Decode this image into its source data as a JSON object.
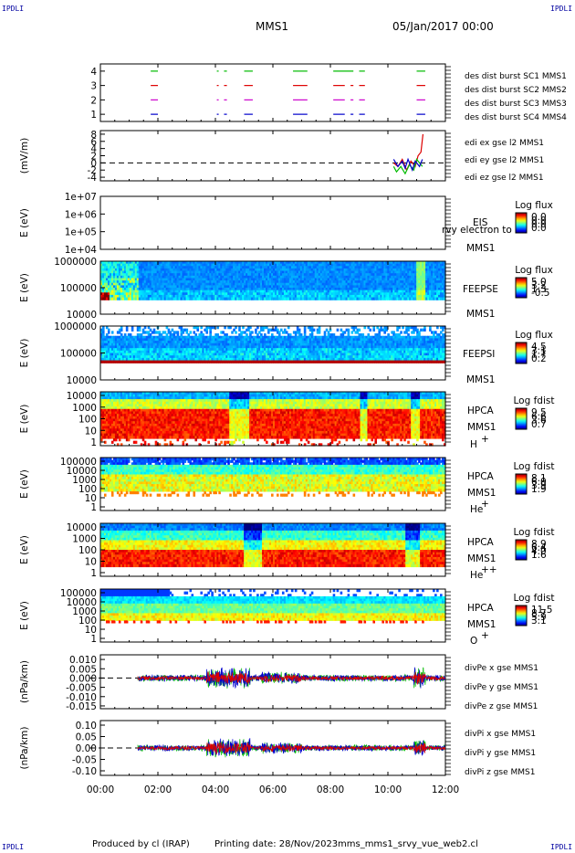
{
  "header": {
    "mission": "MMS1",
    "date": "05/Jan/2017 00:00"
  },
  "corner_mark": "IPDLI",
  "footer": {
    "produced_by": "Produced by cl (IRAP)",
    "printing_date": "Printing date: 28/Nov/2023",
    "filename": "mms_mms1_srvy_vue_web2.cl"
  },
  "colors": {
    "blue": "#0000cc",
    "magenta": "#cc00cc",
    "red": "#dd0000",
    "green": "#00bb00"
  },
  "chart_data": {
    "type": "multi-panel time series",
    "time_axis": {
      "ticks": [
        "00:00",
        "02:00",
        "04:00",
        "06:00",
        "08:00",
        "10:00",
        "12:00"
      ],
      "range_hours": [
        0,
        12
      ]
    },
    "panels": [
      {
        "id": "burst",
        "type": "scatter",
        "y_ticks": [
          "4",
          "3",
          "2",
          "1"
        ],
        "y_values": [
          4,
          3,
          2,
          1
        ],
        "ylim": [
          0.5,
          4.5
        ],
        "legend": [
          "des dist burst SC1 MMS1",
          "des dist burst SC2 MMS2",
          "des dist burst SC3 MMS3",
          "des dist burst SC4 MMS4"
        ],
        "legend_colors": [
          "#0000cc",
          "#cc00cc",
          "#dd0000",
          "#00bb00"
        ],
        "series": [
          {
            "level": 4,
            "color": "#00bb00",
            "segments": [
              [
                1.75,
                2.0
              ],
              [
                4.05,
                4.1
              ],
              [
                4.3,
                4.4
              ],
              [
                5.0,
                5.3
              ],
              [
                6.7,
                7.2
              ],
              [
                8.1,
                8.8
              ],
              [
                9.0,
                9.2
              ],
              [
                11.0,
                11.3
              ]
            ]
          },
          {
            "level": 3,
            "color": "#dd0000",
            "segments": [
              [
                1.75,
                2.0
              ],
              [
                4.05,
                4.1
              ],
              [
                4.3,
                4.4
              ],
              [
                5.0,
                5.3
              ],
              [
                6.7,
                7.2
              ],
              [
                8.1,
                8.5
              ],
              [
                8.7,
                8.8
              ],
              [
                9.0,
                9.2
              ],
              [
                11.0,
                11.3
              ]
            ]
          },
          {
            "level": 2,
            "color": "#cc00cc",
            "segments": [
              [
                1.75,
                2.0
              ],
              [
                4.05,
                4.1
              ],
              [
                4.3,
                4.4
              ],
              [
                5.0,
                5.3
              ],
              [
                6.7,
                7.2
              ],
              [
                8.1,
                8.5
              ],
              [
                8.7,
                8.8
              ],
              [
                9.0,
                9.2
              ],
              [
                11.0,
                11.3
              ]
            ]
          },
          {
            "level": 1,
            "color": "#0000cc",
            "segments": [
              [
                1.75,
                2.0
              ],
              [
                4.05,
                4.1
              ],
              [
                4.3,
                4.4
              ],
              [
                5.0,
                5.3
              ],
              [
                6.7,
                7.2
              ],
              [
                8.1,
                8.5
              ],
              [
                8.7,
                8.8
              ],
              [
                9.0,
                9.2
              ],
              [
                11.0,
                11.3
              ]
            ]
          }
        ]
      },
      {
        "id": "edi",
        "type": "line",
        "ylabel": "(mV/m)",
        "y_ticks": [
          "8",
          "6",
          "4",
          "2",
          "0",
          "-2",
          "-4"
        ],
        "y_values": [
          8,
          6,
          4,
          2,
          0,
          -2,
          -4
        ],
        "ylim": [
          -5,
          9
        ],
        "zero_line": true,
        "legend": [
          "edi ex gse l2 MMS1",
          "edi ey gse l2 MMS1",
          "edi ez gse l2 MMS1"
        ],
        "legend_colors": [
          "#dd0000",
          "#00bb00",
          "#0000cc"
        ],
        "series": [
          {
            "name": "edi ex gse l2 MMS1",
            "color": "#dd0000",
            "x": [
              10.2,
              10.35,
              10.5,
              10.65,
              10.8,
              10.95,
              11.05,
              11.15,
              11.22
            ],
            "y": [
              0,
              -1,
              1,
              -2,
              0.5,
              -1,
              2,
              3,
              8
            ]
          },
          {
            "name": "edi ey gse l2 MMS1",
            "color": "#00bb00",
            "x": [
              10.2,
              10.3,
              10.45,
              10.6,
              10.75,
              10.9,
              11.0,
              11.1,
              11.2
            ],
            "y": [
              -1,
              -2.5,
              -1,
              -3,
              -0.5,
              -2,
              1,
              0,
              -1
            ]
          },
          {
            "name": "edi ez gse l2 MMS1",
            "color": "#0000cc",
            "x": [
              10.2,
              10.35,
              10.5,
              10.6,
              10.7,
              10.85,
              10.95,
              11.1,
              11.2
            ],
            "y": [
              1,
              -1,
              0.5,
              -1.5,
              1,
              -2,
              0.5,
              -1,
              1
            ]
          }
        ]
      },
      {
        "id": "eis",
        "type": "heatmap",
        "ylabel": "E (eV)",
        "y_ticks": [
          "1e+07",
          "1e+06",
          "1e+05",
          "1e+04"
        ],
        "labels": [
          "EIS",
          "MMS1"
        ],
        "overlay_text": "rvy electron to",
        "colorbar_title": "Log flux",
        "colorbar_ticks": [
          "0.0",
          "0.0",
          "0.0",
          "0.0"
        ]
      },
      {
        "id": "feepse",
        "type": "heatmap",
        "ylabel": "E (eV)",
        "y_ticks": [
          "1000000",
          "100000",
          "10000"
        ],
        "labels": [
          "FEEPSE",
          "MMS1"
        ],
        "colorbar_title": "Log flux",
        "colorbar_ticks": [
          "5.0",
          "3.2",
          "1.3",
          "-0.5"
        ]
      },
      {
        "id": "feepsi",
        "type": "heatmap",
        "ylabel": "E (eV)",
        "y_ticks": [
          "1000000",
          "100000",
          "10000"
        ],
        "labels": [
          "FEEPSI",
          "MMS1"
        ],
        "colorbar_title": "Log flux",
        "colorbar_ticks": [
          "4.5",
          "3.1",
          "1.7",
          "0.2"
        ]
      },
      {
        "id": "hpca_h",
        "type": "heatmap",
        "ylabel": "E (eV)",
        "y_ticks": [
          "10000",
          "1000",
          "100",
          "10",
          "1"
        ],
        "labels": [
          "HPCA",
          "MMS1"
        ],
        "species": "H",
        "charge": "+",
        "colorbar_title": "Log fdist",
        "colorbar_ticks": [
          "9.5",
          "6.6",
          "3.6",
          "0.7"
        ]
      },
      {
        "id": "hpca_he",
        "type": "heatmap",
        "ylabel": "E (eV)",
        "y_ticks": [
          "100000",
          "10000",
          "1000",
          "100",
          "10",
          "1"
        ],
        "labels": [
          "HPCA",
          "MMS1"
        ],
        "species": "He",
        "charge": "+",
        "colorbar_title": "Log fdist",
        "colorbar_ticks": [
          "8.1",
          "6.0",
          "3.9",
          "1.9"
        ]
      },
      {
        "id": "hpca_hepp",
        "type": "heatmap",
        "ylabel": "E (eV)",
        "y_ticks": [
          "10000",
          "1000",
          "100",
          "10",
          "1"
        ],
        "labels": [
          "HPCA",
          "MMS1"
        ],
        "species": "He",
        "charge": "++",
        "colorbar_title": "Log fdist",
        "colorbar_ticks": [
          "8.9",
          "6.4",
          "4.0",
          "1.6"
        ]
      },
      {
        "id": "hpca_o",
        "type": "heatmap",
        "ylabel": "E (eV)",
        "y_ticks": [
          "100000",
          "10000",
          "1000",
          "100",
          "10",
          "1"
        ],
        "labels": [
          "HPCA",
          "MMS1"
        ],
        "species": "O",
        "charge": "+",
        "colorbar_title": "Log fdist",
        "colorbar_ticks": [
          "11.5",
          "8.7",
          "5.9",
          "3.1"
        ]
      },
      {
        "id": "divpe",
        "type": "line",
        "ylabel": "(nPa/km)",
        "y_ticks": [
          "0.010",
          "0.005",
          "0.000",
          "-0.005",
          "-0.010",
          "-0.015"
        ],
        "y_values": [
          0.01,
          0.005,
          0.0,
          -0.005,
          -0.01,
          -0.015
        ],
        "ylim": [
          -0.0165,
          0.0125
        ],
        "zero_line": true,
        "legend": [
          "divPe x gse MMS1",
          "divPe y gse MMS1",
          "divPe z gse MMS1"
        ],
        "legend_colors": [
          "#dd0000",
          "#00bb00",
          "#0000cc"
        ]
      },
      {
        "id": "divpi",
        "type": "line",
        "ylabel": "(nPa/km)",
        "y_ticks": [
          "0.10",
          "0.05",
          "0.00",
          "-0.05",
          "-0.10"
        ],
        "y_values": [
          0.1,
          0.05,
          0.0,
          -0.05,
          -0.1
        ],
        "ylim": [
          -0.12,
          0.12
        ],
        "zero_line": true,
        "legend": [
          "divPi x gse MMS1",
          "divPi y gse MMS1",
          "divPi z gse MMS1"
        ],
        "legend_colors": [
          "#dd0000",
          "#00bb00",
          "#0000cc"
        ]
      }
    ]
  }
}
